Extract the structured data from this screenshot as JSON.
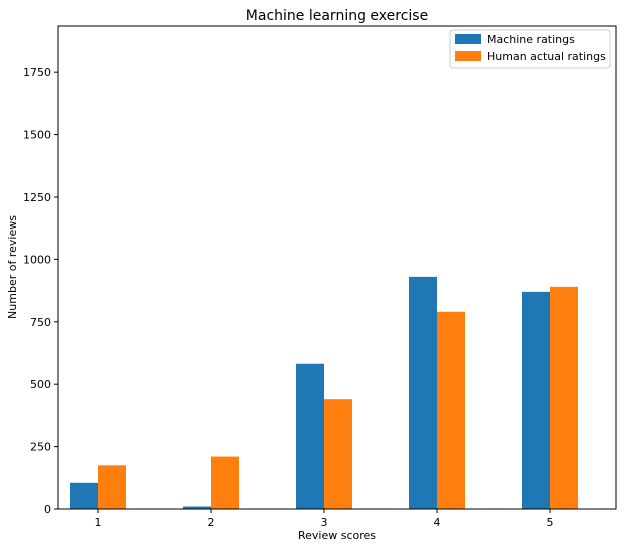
{
  "colors": {
    "background": "#ffffff",
    "axis": "#000000",
    "machine": "#1f77b4",
    "human": "#ff7f0e",
    "legend_border": "#cccccc"
  },
  "chart_data": {
    "type": "bar",
    "title": "Machine learning exercise",
    "xlabel": "Review scores",
    "ylabel": "Number of reviews",
    "categories": [
      "1",
      "2",
      "3",
      "4",
      "5"
    ],
    "series": [
      {
        "name": "Machine ratings",
        "values": [
          105,
          10,
          582,
          930,
          870
        ],
        "color": "#1f77b4"
      },
      {
        "name": "Human actual ratings",
        "values": [
          175,
          210,
          440,
          790,
          890
        ],
        "color": "#ff7f0e"
      }
    ],
    "ylim": [
      0,
      1935
    ],
    "yticks": [
      0,
      250,
      500,
      750,
      1000,
      1250,
      1500,
      1750
    ],
    "ytick_labels": [
      "0",
      "250",
      "500",
      "750",
      "1000",
      "1250",
      "1500",
      "1750"
    ],
    "legend_position": "top-right",
    "grid": false
  }
}
